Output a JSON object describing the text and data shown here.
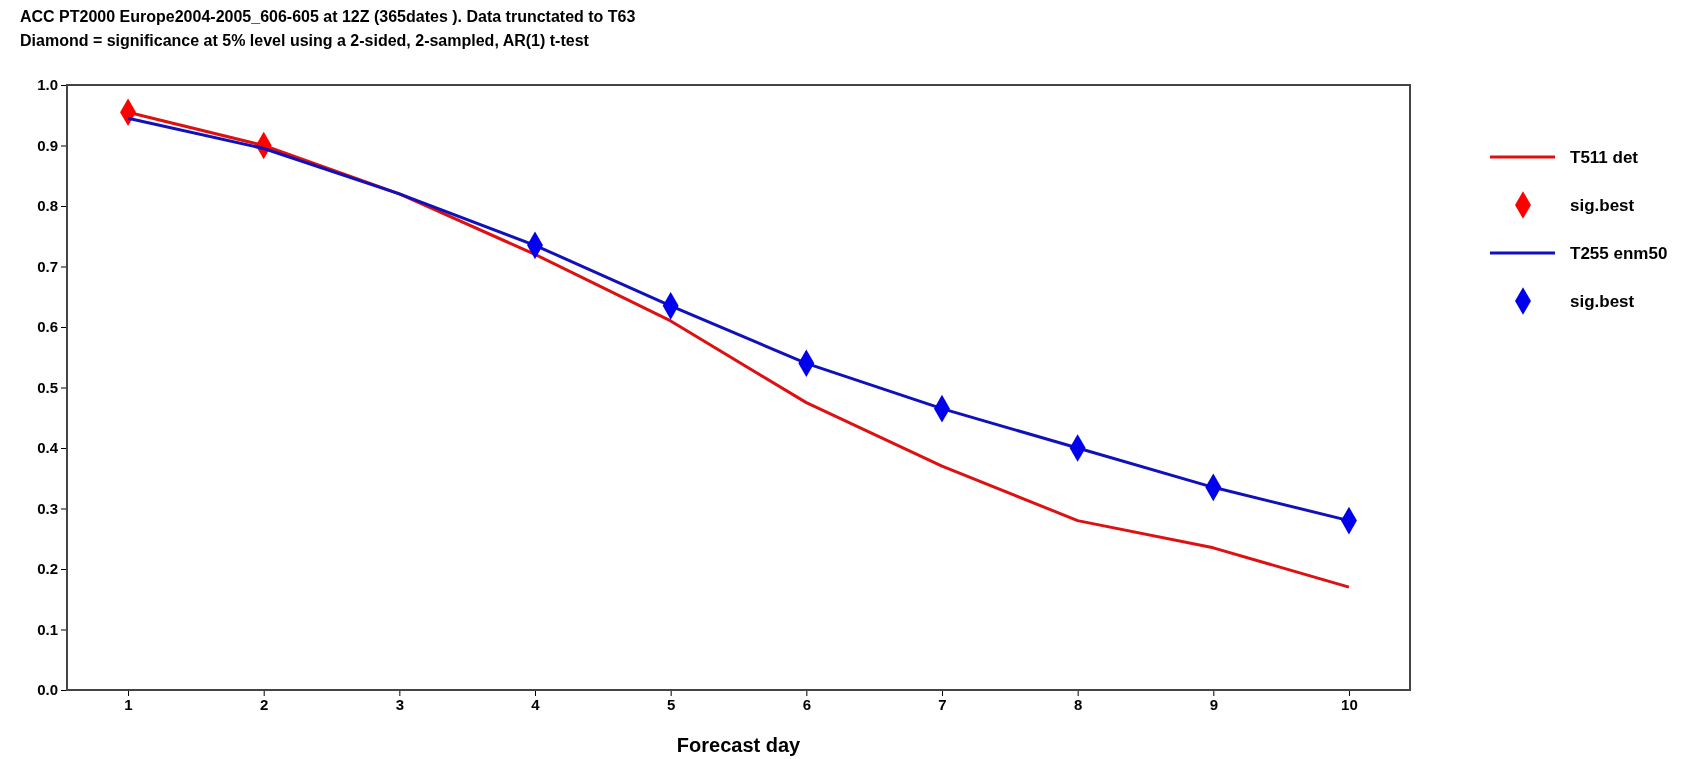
{
  "chart_data": {
    "type": "line",
    "title": "ACC PT2000 Europe2004-2005_606-605 at 12Z (365dates ). Data trunctated to T63",
    "subtitle": "Diamond = significance at 5% level using a 2-sided, 2-sampled, AR(1) t-test",
    "xlabel": "Forecast day",
    "x": [
      1,
      2,
      3,
      4,
      5,
      6,
      7,
      8,
      9,
      10
    ],
    "xlim": [
      0.55,
      10.45
    ],
    "xticks": [
      1,
      2,
      3,
      4,
      5,
      6,
      7,
      8,
      9,
      10
    ],
    "ylim": [
      0,
      1
    ],
    "yticks": [
      {
        "value": 0,
        "label": "0.0"
      },
      {
        "value": 0.1,
        "label": "0.1"
      },
      {
        "value": 0.2,
        "label": "0.2"
      },
      {
        "value": 0.3,
        "label": "0.3"
      },
      {
        "value": 0.4,
        "label": "0.4"
      },
      {
        "value": 0.5,
        "label": "0.5"
      },
      {
        "value": 0.6,
        "label": "0.6"
      },
      {
        "value": 0.7,
        "label": "0.7"
      },
      {
        "value": 0.8,
        "label": "0.8"
      },
      {
        "value": 0.9,
        "label": "0.9"
      },
      {
        "value": 1,
        "label": "1.0"
      }
    ],
    "grid": false,
    "legend": "right",
    "line_style": "solid",
    "series": [
      {
        "name": "T511 det",
        "color": "#dd1111",
        "marker": "none",
        "values": [
          0.955,
          0.9,
          0.82,
          0.72,
          0.61,
          0.475,
          0.37,
          0.28,
          0.235,
          0.17
        ]
      },
      {
        "name": "sig.best",
        "color": "#ff0000",
        "type": "scatter",
        "marker": "diamond",
        "x": [
          1,
          2
        ],
        "values": [
          0.955,
          0.9
        ]
      },
      {
        "name": "T255 enm50",
        "color": "#1111bb",
        "marker": "none",
        "values": [
          0.945,
          0.895,
          0.82,
          0.735,
          0.635,
          0.54,
          0.465,
          0.4,
          0.335,
          0.28
        ]
      },
      {
        "name": "sig.best",
        "color": "#0000ee",
        "type": "scatter",
        "marker": "diamond",
        "x": [
          4,
          5,
          6,
          7,
          8,
          9,
          10
        ],
        "values": [
          0.735,
          0.635,
          0.54,
          0.465,
          0.4,
          0.335,
          0.28
        ]
      }
    ]
  }
}
